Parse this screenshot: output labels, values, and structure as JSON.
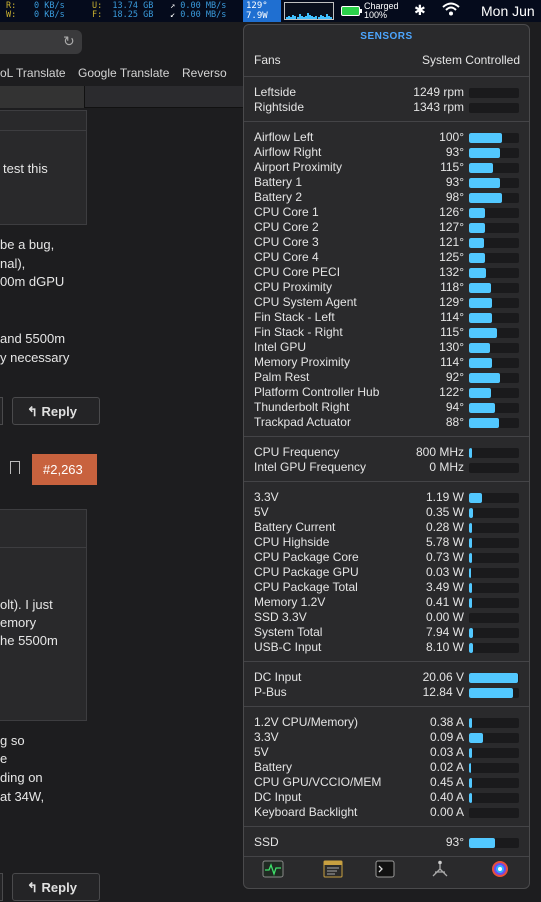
{
  "menubar": {
    "net_r_label": "R:",
    "net_r_value": "0 KB/s",
    "net_w_label": "W:",
    "net_w_value": "0 KB/s",
    "disk_u_label": "U:",
    "disk_u_value": "13.74 GB",
    "disk_f_label": "F:",
    "disk_f_value": "18.25 GB",
    "net_in": "0.00 MB/s",
    "net_out": "0.00 MB/s",
    "temp": "129°",
    "power": "7.9W",
    "battery_status": "Charged",
    "battery_pct": "100%",
    "clock": "Mon Jun",
    "icons": [
      "battery-icon",
      "bluetooth-icon",
      "wifi-icon"
    ]
  },
  "browser": {
    "bookmarks": [
      "oL Translate",
      "Google Translate",
      "Reverso"
    ]
  },
  "forum": {
    "lines_1": [
      "test this"
    ],
    "lines_2": [
      "be a bug,",
      "nal),",
      "00m dGPU"
    ],
    "lines_3": [
      "and 5500m",
      "y necessary"
    ],
    "reply_label": "Reply",
    "post_number": "#2,263",
    "lines_4": [
      "olt). I just",
      "emory",
      "he 5500m"
    ],
    "lines_5": [
      "g so",
      "e",
      "ding on",
      "at 34W,"
    ]
  },
  "panel": {
    "title": "SENSORS",
    "fans_label": "Fans",
    "fans_value": "System Controlled",
    "accent": "#52c8ff",
    "sections": [
      {
        "rows": [
          {
            "label": "Leftside",
            "value": "1249 rpm",
            "level": 0
          },
          {
            "label": "Rightside",
            "value": "1343 rpm",
            "level": 0
          }
        ]
      },
      {
        "rows": [
          {
            "label": "Airflow Left",
            "value": "100°",
            "level": 0.66
          },
          {
            "label": "Airflow Right",
            "value": "93°",
            "level": 0.62
          },
          {
            "label": "Airport Proximity",
            "value": "115°",
            "level": 0.48
          },
          {
            "label": "Battery 1",
            "value": "93°",
            "level": 0.62
          },
          {
            "label": "Battery 2",
            "value": "98°",
            "level": 0.65
          },
          {
            "label": "CPU Core 1",
            "value": "126°",
            "level": 0.32
          },
          {
            "label": "CPU Core 2",
            "value": "127°",
            "level": 0.32
          },
          {
            "label": "CPU Core 3",
            "value": "121°",
            "level": 0.3
          },
          {
            "label": "CPU Core 4",
            "value": "125°",
            "level": 0.31
          },
          {
            "label": "CPU Core PECI",
            "value": "132°",
            "level": 0.33
          },
          {
            "label": "CPU Proximity",
            "value": "118°",
            "level": 0.44
          },
          {
            "label": "CPU System Agent",
            "value": "129°",
            "level": 0.46
          },
          {
            "label": "Fin Stack - Left",
            "value": "114°",
            "level": 0.46
          },
          {
            "label": "Fin Stack - Right",
            "value": "115°",
            "level": 0.56
          },
          {
            "label": "Intel GPU",
            "value": "130°",
            "level": 0.42
          },
          {
            "label": "Memory Proximity",
            "value": "114°",
            "level": 0.45
          },
          {
            "label": "Palm Rest",
            "value": "92°",
            "level": 0.61
          },
          {
            "label": "Platform Controller Hub",
            "value": "122°",
            "level": 0.43
          },
          {
            "label": "Thunderbolt Right",
            "value": "94°",
            "level": 0.52
          },
          {
            "label": "Trackpad Actuator",
            "value": "88°",
            "level": 0.59
          }
        ]
      },
      {
        "rows": [
          {
            "label": "CPU Frequency",
            "value": "800 MHz",
            "level": 0.06
          },
          {
            "label": "Intel GPU Frequency",
            "value": "0 MHz",
            "level": 0
          }
        ]
      },
      {
        "rows": [
          {
            "label": "3.3V",
            "value": "1.19 W",
            "level": 0.26
          },
          {
            "label": "5V",
            "value": "0.35 W",
            "level": 0.07
          },
          {
            "label": "Battery Current",
            "value": "0.28 W",
            "level": 0.05
          },
          {
            "label": "CPU Highside",
            "value": "5.78 W",
            "level": 0.06
          },
          {
            "label": "CPU Package Core",
            "value": "0.73 W",
            "level": 0.05
          },
          {
            "label": "CPU Package GPU",
            "value": "0.03 W",
            "level": 0.04
          },
          {
            "label": "CPU Package Total",
            "value": "3.49 W",
            "level": 0.05
          },
          {
            "label": "Memory 1.2V",
            "value": "0.41 W",
            "level": 0.06
          },
          {
            "label": "SSD 3.3V",
            "value": "0.00 W",
            "level": 0
          },
          {
            "label": "System Total",
            "value": "7.94 W",
            "level": 0.07
          },
          {
            "label": "USB-C Input",
            "value": "8.10 W",
            "level": 0.07
          }
        ]
      },
      {
        "rows": [
          {
            "label": "DC Input",
            "value": "20.06 V",
            "level": 0.98
          },
          {
            "label": "P-Bus",
            "value": "12.84 V",
            "level": 0.88
          }
        ]
      },
      {
        "rows": [
          {
            "label": "1.2V CPU/Memory)",
            "value": "0.38 A",
            "level": 0.06
          },
          {
            "label": "3.3V",
            "value": "0.09 A",
            "level": 0.28
          },
          {
            "label": "5V",
            "value": "0.03 A",
            "level": 0.05
          },
          {
            "label": "Battery",
            "value": "0.02 A",
            "level": 0.04
          },
          {
            "label": "CPU GPU/VCCIO/MEM",
            "value": "0.45 A",
            "level": 0.06
          },
          {
            "label": "DC Input",
            "value": "0.40 A",
            "level": 0.06
          },
          {
            "label": "Keyboard Backlight",
            "value": "0.00 A",
            "level": 0
          }
        ]
      },
      {
        "rows": [
          {
            "label": "SSD",
            "value": "93°",
            "level": 0.52
          }
        ]
      }
    ],
    "toolbar": [
      "activity-monitor-icon",
      "console-log-icon",
      "terminal-icon",
      "network-icon",
      "colorsync-icon"
    ]
  }
}
